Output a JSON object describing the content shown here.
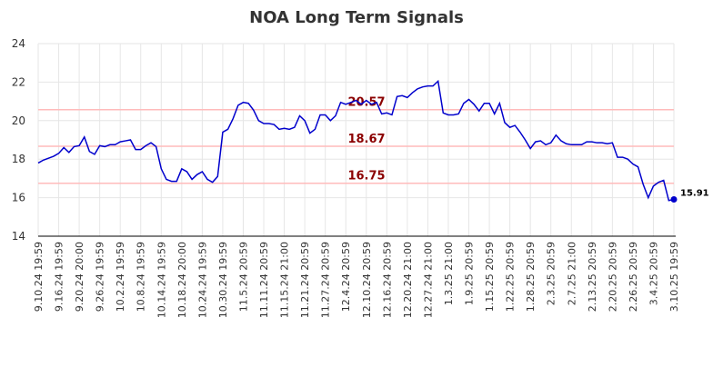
{
  "chart_data": {
    "type": "line",
    "title": "NOA Long Term Signals",
    "categories": [
      "9.10.24 19:59",
      null,
      null,
      null,
      "9.16.24 19:59",
      null,
      null,
      null,
      "9.20.24 20:00",
      null,
      null,
      null,
      "9.26.24 19:59",
      null,
      null,
      null,
      "10.2.24 19:59",
      null,
      null,
      null,
      "10.8.24 19:59",
      null,
      null,
      null,
      "10.14.24 19:59",
      null,
      null,
      null,
      "10.18.24 20:00",
      null,
      null,
      null,
      "10.24.24 19:59",
      null,
      null,
      null,
      "10.30.24 19:59",
      null,
      null,
      null,
      "11.5.24 20:59",
      null,
      null,
      null,
      "11.11.24 20:59",
      null,
      null,
      null,
      "11.15.24 21:00",
      null,
      null,
      null,
      "11.21.24 20:59",
      null,
      null,
      null,
      "11.27.24 20:59",
      null,
      null,
      null,
      "12.4.24 20:59",
      null,
      null,
      null,
      "12.10.24 20:59",
      null,
      null,
      null,
      "12.16.24 20:59",
      null,
      null,
      null,
      "12.20.24 21:00",
      null,
      null,
      null,
      "12.27.24 21:00",
      null,
      null,
      null,
      "1.3.25 21:00",
      null,
      null,
      null,
      "1.9.25 20:59",
      null,
      null,
      null,
      "1.15.25 20:59",
      null,
      null,
      null,
      "1.22.25 20:59",
      null,
      null,
      null,
      "1.28.25 20:59",
      null,
      null,
      null,
      "2.3.25 20:59",
      null,
      null,
      null,
      "2.7.25 21:00",
      null,
      null,
      null,
      "2.13.25 20:59",
      null,
      null,
      null,
      "2.20.25 20:59",
      null,
      null,
      null,
      "2.26.25 20:59",
      null,
      null,
      null,
      "3.4.25 20:59",
      null,
      null,
      null,
      "3.10.25 19:59"
    ],
    "series": [
      {
        "color": "#0000cc",
        "values": [
          17.8,
          17.95,
          18.05,
          18.15,
          18.3,
          18.6,
          18.35,
          18.65,
          18.7,
          19.15,
          18.4,
          18.25,
          18.7,
          18.65,
          18.75,
          18.75,
          18.9,
          18.95,
          19.0,
          18.5,
          18.5,
          18.7,
          18.85,
          18.65,
          17.5,
          16.95,
          16.85,
          16.85,
          17.5,
          17.35,
          16.95,
          17.2,
          17.35,
          16.95,
          16.8,
          17.1,
          19.4,
          19.55,
          20.1,
          20.8,
          20.95,
          20.9,
          20.55,
          20.0,
          19.85,
          19.85,
          19.8,
          19.55,
          19.6,
          19.55,
          19.65,
          20.25,
          20.0,
          19.35,
          19.55,
          20.3,
          20.3,
          20.0,
          20.25,
          20.95,
          20.85,
          20.95,
          21.05,
          20.85,
          21.05,
          20.85,
          20.95,
          20.35,
          20.4,
          20.3,
          21.25,
          21.3,
          21.2,
          21.45,
          21.65,
          21.75,
          21.8,
          21.8,
          22.05,
          20.4,
          20.3,
          20.3,
          20.35,
          20.9,
          21.1,
          20.85,
          20.5,
          20.9,
          20.9,
          20.35,
          20.9,
          19.9,
          19.65,
          19.75,
          19.4,
          19.0,
          18.55,
          18.9,
          18.95,
          18.75,
          18.85,
          19.25,
          18.95,
          18.8,
          18.75,
          18.75,
          18.75,
          18.9,
          18.9,
          18.85,
          18.85,
          18.8,
          18.85,
          18.1,
          18.1,
          18.0,
          17.75,
          17.6,
          16.7,
          16.0,
          16.6,
          16.8,
          16.9,
          15.85,
          15.91
        ]
      }
    ],
    "signals": [
      {
        "value": 20.57,
        "color": "#ffbbbb",
        "label_color": "#8b0000"
      },
      {
        "value": 18.67,
        "color": "#ffbbbb",
        "label_color": "#8b0000"
      },
      {
        "value": 16.75,
        "color": "#ffbbbb",
        "label_color": "#8b0000"
      }
    ],
    "ylim": [
      14,
      24
    ],
    "yticks": [
      14,
      16,
      18,
      20,
      22,
      24
    ],
    "grid": true
  }
}
